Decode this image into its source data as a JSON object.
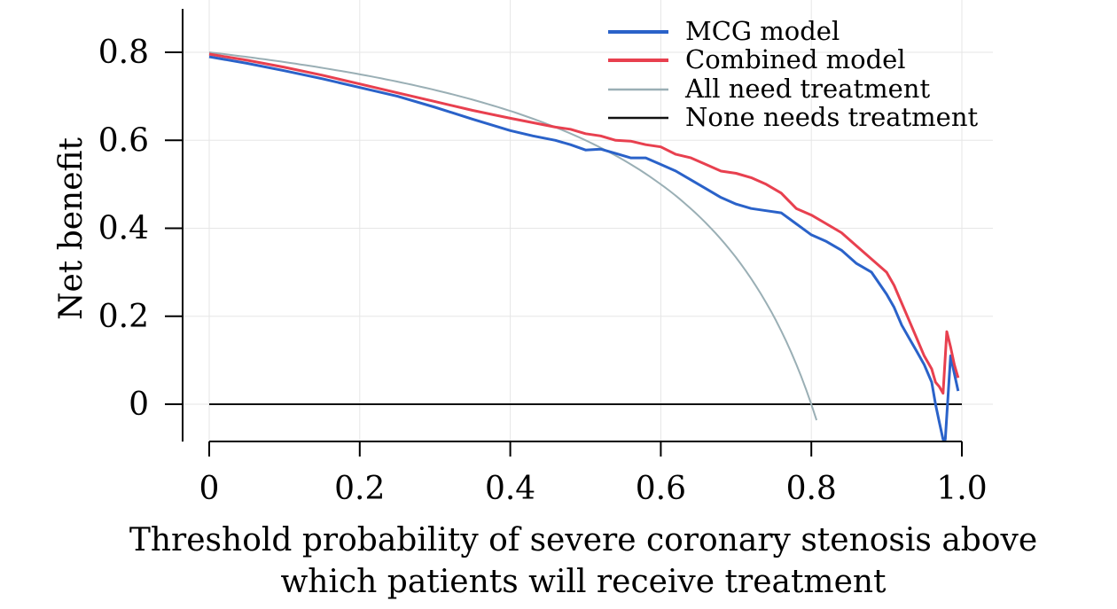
{
  "chart_data": {
    "type": "line",
    "xlabel": "Threshold probability of severe coronary stenosis above which patients will receive treatment",
    "xlabel_lines": [
      "Threshold probability of severe coronary stenosis above",
      "which patients will receive treatment"
    ],
    "ylabel": "Net benefit",
    "xlim": [
      0,
      1.0
    ],
    "ylim": [
      -0.085,
      0.85
    ],
    "x_ticks": [
      0,
      0.2,
      0.4,
      0.6,
      0.8,
      1.0
    ],
    "x_tick_labels": [
      "0",
      "0.2",
      "0.4",
      "0.6",
      "0.8",
      "1.0"
    ],
    "y_ticks": [
      0,
      0.2,
      0.4,
      0.6,
      0.8
    ],
    "y_tick_labels": [
      "0",
      "0.2",
      "0.4",
      "0.6",
      "0.8"
    ],
    "grid": true,
    "legend_position": "top-right",
    "series": [
      {
        "name": "MCG model",
        "color": "#2a62c9",
        "x": [
          0,
          0.05,
          0.1,
          0.15,
          0.2,
          0.25,
          0.3,
          0.35,
          0.4,
          0.43,
          0.46,
          0.48,
          0.5,
          0.52,
          0.54,
          0.56,
          0.58,
          0.6,
          0.62,
          0.64,
          0.66,
          0.68,
          0.7,
          0.72,
          0.74,
          0.76,
          0.78,
          0.8,
          0.82,
          0.84,
          0.86,
          0.88,
          0.9,
          0.91,
          0.92,
          0.93,
          0.94,
          0.95,
          0.96,
          0.965,
          0.97,
          0.975,
          0.978,
          0.985,
          0.99,
          0.995
        ],
        "y": [
          0.79,
          0.775,
          0.758,
          0.74,
          0.72,
          0.7,
          0.675,
          0.648,
          0.622,
          0.61,
          0.6,
          0.59,
          0.578,
          0.58,
          0.57,
          0.56,
          0.56,
          0.545,
          0.53,
          0.51,
          0.49,
          0.47,
          0.455,
          0.445,
          0.44,
          0.435,
          0.41,
          0.385,
          0.37,
          0.35,
          0.32,
          0.3,
          0.25,
          0.22,
          0.18,
          0.15,
          0.12,
          0.09,
          0.05,
          0.0,
          -0.04,
          -0.08,
          -0.08,
          0.11,
          0.07,
          0.03
        ]
      },
      {
        "name": "Combined model",
        "color": "#e8404f",
        "x": [
          0,
          0.05,
          0.1,
          0.15,
          0.2,
          0.25,
          0.3,
          0.35,
          0.4,
          0.43,
          0.46,
          0.48,
          0.5,
          0.52,
          0.54,
          0.56,
          0.58,
          0.6,
          0.62,
          0.64,
          0.66,
          0.68,
          0.7,
          0.72,
          0.74,
          0.76,
          0.78,
          0.8,
          0.82,
          0.84,
          0.86,
          0.88,
          0.9,
          0.91,
          0.92,
          0.93,
          0.94,
          0.95,
          0.96,
          0.965,
          0.97,
          0.975,
          0.98,
          0.985,
          0.99,
          0.995
        ],
        "y": [
          0.796,
          0.782,
          0.766,
          0.748,
          0.728,
          0.708,
          0.688,
          0.668,
          0.65,
          0.64,
          0.63,
          0.625,
          0.615,
          0.61,
          0.6,
          0.598,
          0.59,
          0.585,
          0.568,
          0.56,
          0.545,
          0.53,
          0.525,
          0.515,
          0.5,
          0.48,
          0.445,
          0.43,
          0.41,
          0.39,
          0.36,
          0.33,
          0.3,
          0.27,
          0.23,
          0.19,
          0.15,
          0.11,
          0.08,
          0.05,
          0.04,
          0.025,
          0.165,
          0.13,
          0.09,
          0.06
        ]
      },
      {
        "name": "All need treatment",
        "color": "#9aafb5",
        "prevalence": 0.8,
        "x_max": 0.807
      },
      {
        "name": "None needs treatment",
        "color": "#111111",
        "x": [
          0,
          1.0
        ],
        "y": [
          0,
          0
        ]
      }
    ]
  }
}
